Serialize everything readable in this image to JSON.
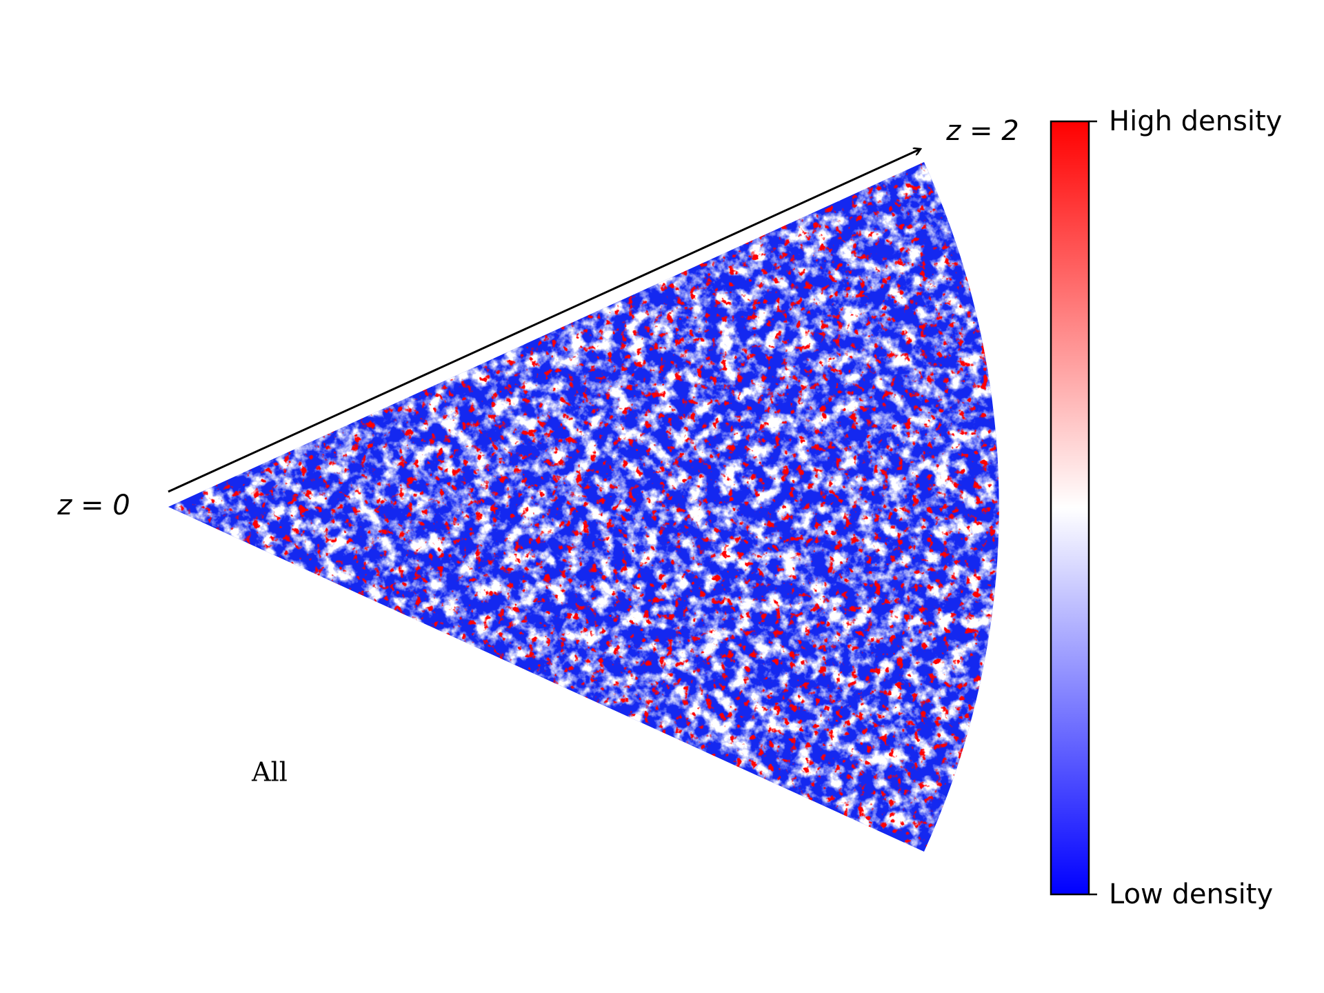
{
  "labels": {
    "z_start": "z = 0",
    "z_end": "z = 2",
    "sample": "All"
  },
  "colorbar": {
    "high": "High density",
    "low": "Low density"
  }
}
